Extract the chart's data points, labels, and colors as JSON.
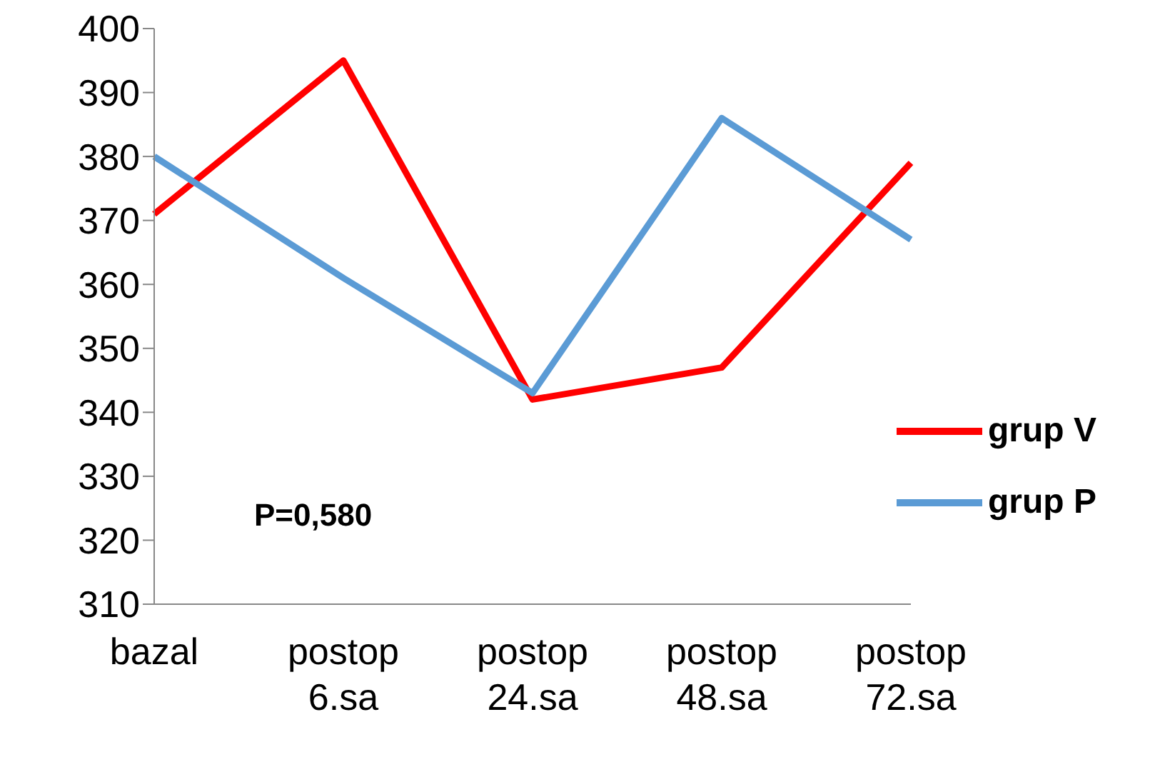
{
  "chart_data": {
    "type": "line",
    "categories": [
      "bazal",
      "postop 6.sa",
      "postop 24.sa",
      "postop 48.sa",
      "postop 72.sa"
    ],
    "series": [
      {
        "name": "grup V",
        "color": "#ff0000",
        "values": [
          371,
          395,
          342,
          347,
          379
        ]
      },
      {
        "name": "grup P",
        "color": "#5b9bd5",
        "values": [
          380,
          361,
          343,
          386,
          367
        ]
      }
    ],
    "ylim": [
      310,
      400
    ],
    "yticks": [
      310,
      320,
      330,
      340,
      350,
      360,
      370,
      380,
      390,
      400
    ],
    "grid": false,
    "legend": "right",
    "marker": "none",
    "line_style": "solid",
    "annotations": [
      "P=0,580"
    ]
  }
}
